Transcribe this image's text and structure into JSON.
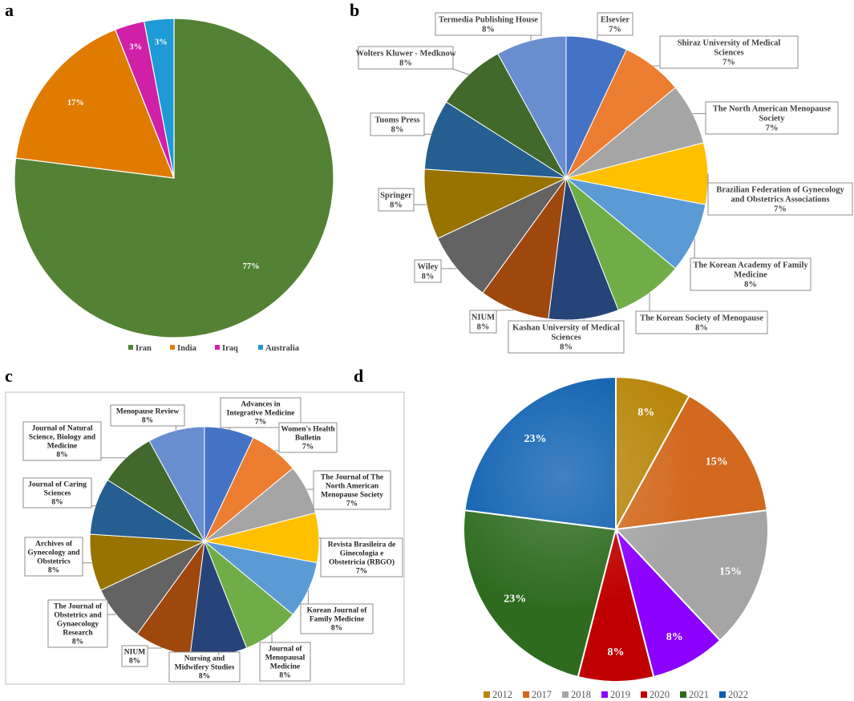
{
  "chart_data": [
    {
      "panel": "a",
      "type": "pie",
      "categories": [
        "Iran",
        "India",
        "Iraq",
        "Australia"
      ],
      "values": [
        77,
        17,
        3,
        3
      ],
      "labels": [
        "77%",
        "17%",
        "3%",
        "3%"
      ],
      "colors": [
        "#548235",
        "#E07B00",
        "#D020A8",
        "#1E9AD6"
      ],
      "legend": "bottom"
    },
    {
      "panel": "b",
      "type": "pie",
      "categories": [
        "Elsevier",
        "Shiraz University of Medical Sciences",
        "The North American Menopause Society",
        "Brazilian Federation of Gynecology and Obstetrics Associations",
        "The Korean Academy of Family Medicine",
        "The Korean Society of Menopause",
        "Kashan University of Medical Sciences",
        "NIUM",
        "Wiley",
        "Springer",
        "Tuoms Press",
        "Wolters Kluwer - Medknow",
        "Termedia Publishing House"
      ],
      "values": [
        7,
        7,
        7,
        7,
        8,
        8,
        8,
        8,
        8,
        8,
        8,
        8,
        8
      ],
      "labels": [
        "7%",
        "7%",
        "7%",
        "7%",
        "8%",
        "8%",
        "8%",
        "8%",
        "8%",
        "8%",
        "8%",
        "8%",
        "8%"
      ],
      "colors": [
        "#4472C4",
        "#ED7D31",
        "#A5A5A5",
        "#FFC000",
        "#5B9BD5",
        "#70AD47",
        "#264478",
        "#9E480E",
        "#636363",
        "#997300",
        "#255E91",
        "#43682B",
        "#698ED0"
      ]
    },
    {
      "panel": "c",
      "type": "pie",
      "categories": [
        "Advances in Integrative Medicine",
        "Women's Health Bulletin",
        "The Journal of The North American Menopause Society",
        "Revista Brasileira de Ginecologia e Obstetricia (RBGO)",
        "Korean Journal of Family Medicine",
        "Journal of Menopausal Medicine",
        "Nursing and Midwifery Studies",
        "NIUM",
        "The Journal of Obstetrics and Gynaecology Research",
        "Archives of Gynecology and Obstetrics",
        "Journal of Caring Sciences",
        "Journal of Natural Science, Biology and Medicine",
        "Menopause Review"
      ],
      "values": [
        7,
        7,
        7,
        7,
        8,
        8,
        8,
        8,
        8,
        8,
        8,
        8,
        8
      ],
      "labels": [
        "7%",
        "7%",
        "7%",
        "7%",
        "8%",
        "8%",
        "8%",
        "8%",
        "8%",
        "8%",
        "8%",
        "8%",
        "8%"
      ],
      "colors": [
        "#4472C4",
        "#ED7D31",
        "#A5A5A5",
        "#FFC000",
        "#5B9BD5",
        "#70AD47",
        "#264478",
        "#9E480E",
        "#636363",
        "#997300",
        "#255E91",
        "#43682B",
        "#698ED0"
      ]
    },
    {
      "panel": "d",
      "type": "pie",
      "categories": [
        "2012",
        "2017",
        "2018",
        "2019",
        "2020",
        "2021",
        "2022"
      ],
      "values": [
        8,
        15,
        15,
        8,
        8,
        23,
        23
      ],
      "labels": [
        "8%",
        "15%",
        "15%",
        "8%",
        "8%",
        "23%",
        "23%"
      ],
      "colors": [
        "#B8860B",
        "#D2691E",
        "#A5A5A5",
        "#8B00FF",
        "#C00000",
        "#2E6B1F",
        "#0B5FB0"
      ],
      "legend": "bottom"
    }
  ],
  "panel_letters": {
    "a": "a",
    "b": "b",
    "c": "c",
    "d": "d"
  },
  "label_lines": {
    "b": [
      [
        "Elsevier",
        "7%"
      ],
      [
        "Shiraz University of Medical",
        "Sciences",
        "7%"
      ],
      [
        "The North American Menopause",
        "Society",
        "7%"
      ],
      [
        "Brazilian Federation of Gynecology",
        "and Obstetrics Associations",
        "7%"
      ],
      [
        "The Korean Academy of Family",
        "Medicine",
        "8%"
      ],
      [
        "The Korean Society of Menopause",
        "8%"
      ],
      [
        "Kashan University of Medical",
        "Sciences",
        "8%"
      ],
      [
        "NIUM",
        "8%"
      ],
      [
        "Wiley",
        "8%"
      ],
      [
        "Springer",
        "8%"
      ],
      [
        "Tuoms Press",
        "8%"
      ],
      [
        "Wolters Kluwer - Medknow",
        "8%"
      ],
      [
        "Termedia Publishing House",
        "8%"
      ]
    ],
    "c": [
      [
        "Advances in",
        "Integrative Medicine",
        "7%"
      ],
      [
        "Women's Health",
        "Bulletin",
        "7%"
      ],
      [
        "The Journal of The",
        "North American",
        "Menopause Society",
        "7%"
      ],
      [
        "Revista Brasileira de",
        "Ginecologia e",
        "Obstetricia (RBGO)",
        "7%"
      ],
      [
        "Korean Journal of",
        "Family Medicine",
        "8%"
      ],
      [
        "Journal of",
        "Menopausal",
        "Medicine",
        "8%"
      ],
      [
        "Nursing and",
        "Midwifery Studies",
        "8%"
      ],
      [
        "NIUM",
        "8%"
      ],
      [
        "The Journal of",
        "Obstetrics and",
        "Gynaecology",
        "Research",
        "8%"
      ],
      [
        "Archives of",
        "Gynecology and",
        "Obstetrics",
        "8%"
      ],
      [
        "Journal of Caring",
        "Sciences",
        "8%"
      ],
      [
        "Journal of Natural",
        "Science, Biology and",
        "Medicine",
        "8%"
      ],
      [
        "Menopause Review",
        "8%"
      ]
    ]
  }
}
